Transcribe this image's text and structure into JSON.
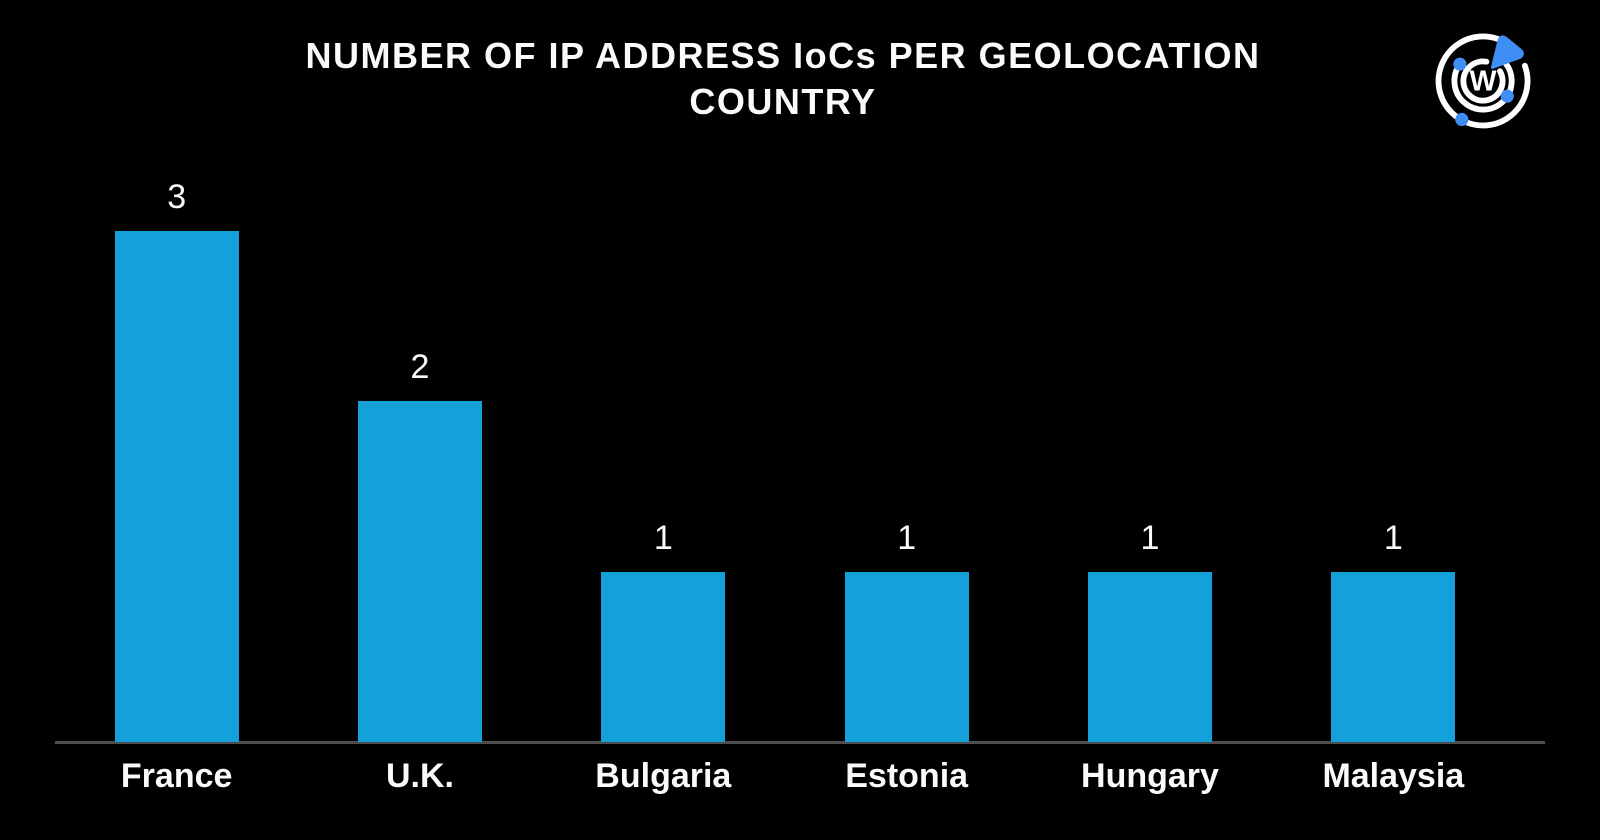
{
  "logo": {
    "letter": "W",
    "accent_color": "#3E8EF6",
    "ring_color": "#FFFFFF"
  },
  "chart_data": {
    "type": "bar",
    "title": "NUMBER OF IP ADDRESS IoCs PER GEOLOCATION COUNTRY",
    "categories": [
      "France",
      "U.K.",
      "Bulgaria",
      "Estonia",
      "Hungary",
      "Malaysia"
    ],
    "values": [
      3,
      2,
      1,
      1,
      1,
      1
    ],
    "xlabel": "",
    "ylabel": "",
    "ylim": [
      0,
      3
    ],
    "value_labels_shown": true,
    "legend": "none",
    "grid": false,
    "y_axis_shown": false,
    "background": "#000000",
    "bar_color": "#14A0D9",
    "axis_line_color": "#4E4E50",
    "text_color": "#FAFAFA"
  }
}
